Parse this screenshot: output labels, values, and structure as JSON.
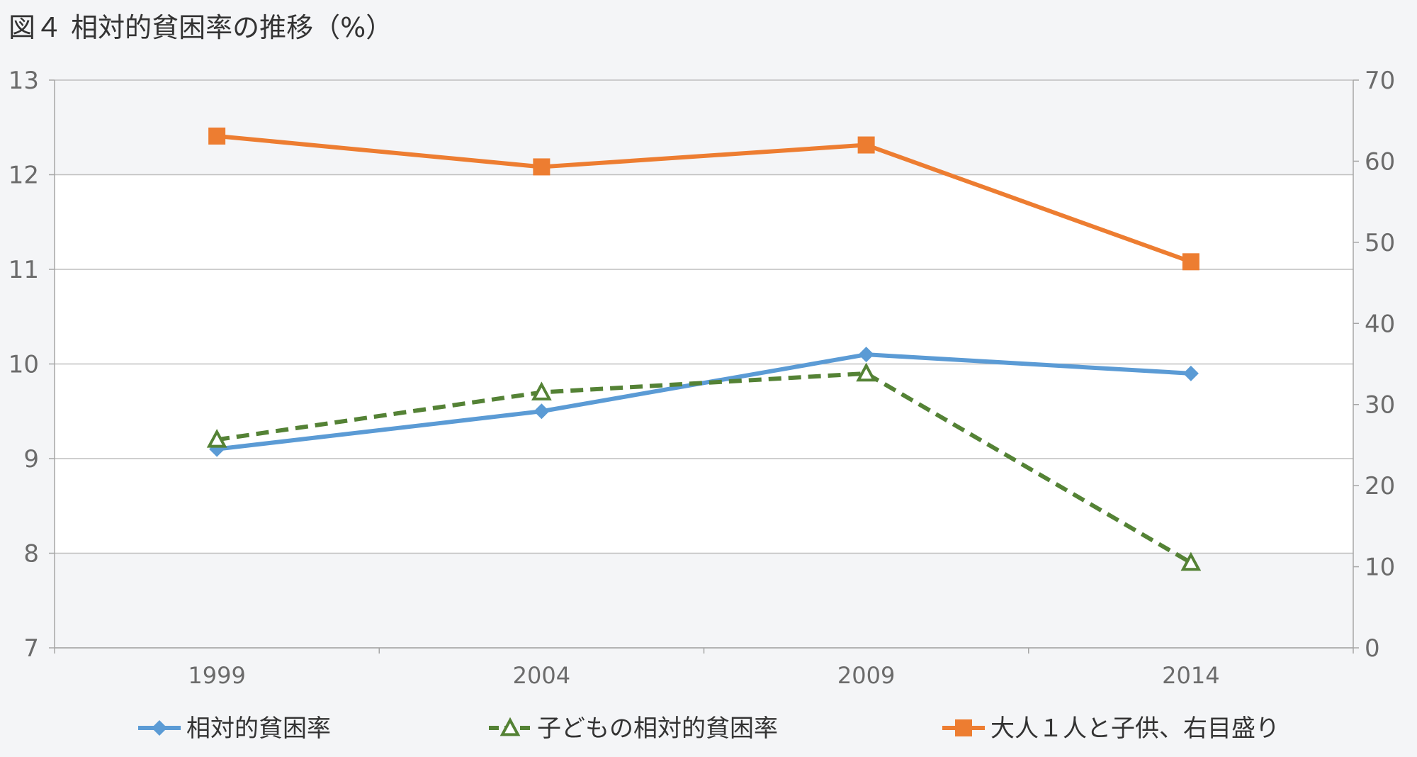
{
  "title": "図４ 相対的貧困率の推移（%）",
  "chart_data": {
    "type": "line",
    "title": "図４ 相対的貧困率の推移（%）",
    "categories": [
      "1999",
      "2004",
      "2009",
      "2014"
    ],
    "y_left": {
      "range": [
        7,
        13
      ],
      "ticks": [
        7,
        8,
        9,
        10,
        11,
        12,
        13
      ]
    },
    "y_right": {
      "range": [
        0,
        70
      ],
      "ticks": [
        0,
        10,
        20,
        30,
        40,
        50,
        60,
        70
      ]
    },
    "grid": true,
    "legend_position": "bottom",
    "series": [
      {
        "name": "相対的貧困率",
        "axis": "left",
        "values": [
          9.1,
          9.5,
          10.1,
          9.9
        ],
        "color": "#5b9bd5",
        "marker": "diamond",
        "dash": "solid"
      },
      {
        "name": "子どもの相対的貧困率",
        "axis": "left",
        "values": [
          9.2,
          9.7,
          9.9,
          7.9
        ],
        "color": "#548235",
        "marker": "triangle",
        "dash": "dashed"
      },
      {
        "name": "大人１人と子供、右目盛り",
        "axis": "right",
        "values": [
          63.1,
          59.3,
          62.0,
          47.6
        ],
        "color": "#ed7d31",
        "marker": "square",
        "dash": "solid"
      }
    ]
  }
}
